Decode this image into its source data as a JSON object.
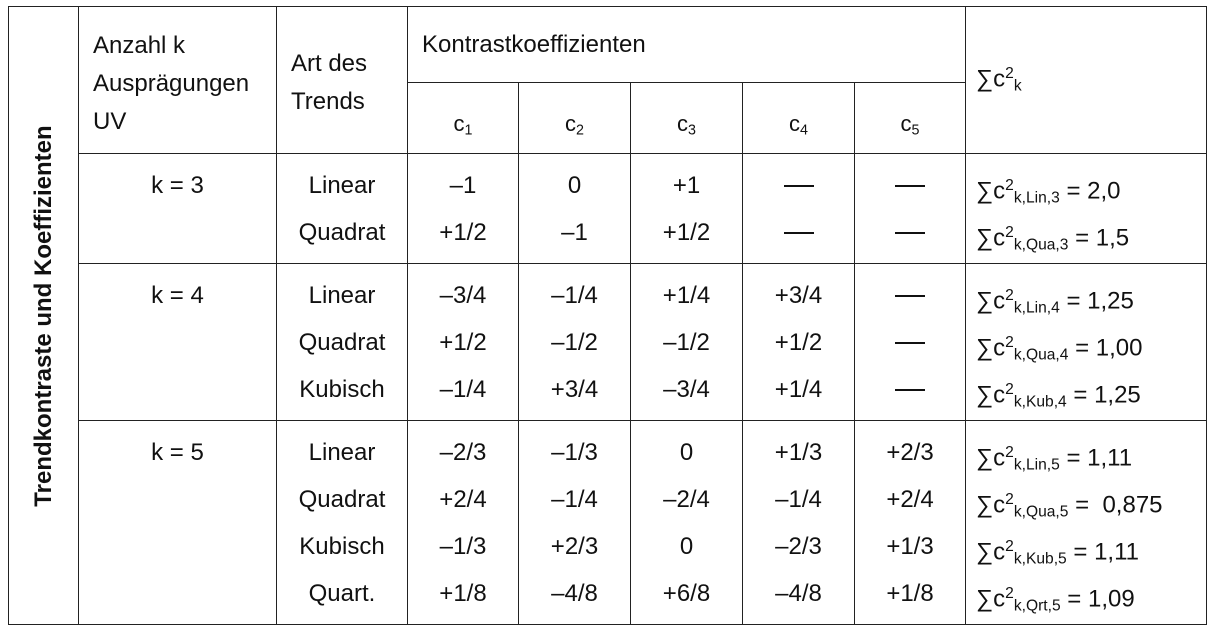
{
  "side_label": "Trendkontraste und Koeffizienten",
  "header": {
    "col_k": [
      "Anzahl k",
      "Ausprägungen",
      "UV"
    ],
    "col_trend": [
      "Art des",
      "Trends"
    ],
    "col_kontrast": "Kontrastkoeffizienten",
    "coef_letter": "c",
    "coef_indices": [
      "1",
      "2",
      "3",
      "4",
      "5"
    ],
    "sum_symbol": "∑c",
    "sum_sup": "2",
    "sum_sub": "k"
  },
  "groups": [
    {
      "k_label": "k = 3",
      "rows": [
        {
          "trend": "Linear",
          "c": [
            "–1",
            "0",
            "+1",
            "—",
            "—"
          ],
          "sum_sub": "k,Lin,3",
          "sum_value": " = 2,0"
        },
        {
          "trend": "Quadrat",
          "c": [
            "+1/2",
            "–1",
            "+1/2",
            "—",
            "—"
          ],
          "sum_sub": "k,Qua,3",
          "sum_value": " = 1,5"
        }
      ]
    },
    {
      "k_label": "k = 4",
      "rows": [
        {
          "trend": "Linear",
          "c": [
            "–3/4",
            "–1/4",
            "+1/4",
            "+3/4",
            "—"
          ],
          "sum_sub": "k,Lin,4",
          "sum_value": " = 1,25"
        },
        {
          "trend": "Quadrat",
          "c": [
            "+1/2",
            "–1/2",
            "–1/2",
            "+1/2",
            "—"
          ],
          "sum_sub": "k,Qua,4",
          "sum_value": " = 1,00"
        },
        {
          "trend": "Kubisch",
          "c": [
            "–1/4",
            "+3/4",
            "–3/4",
            "+1/4",
            "—"
          ],
          "sum_sub": "k,Kub,4",
          "sum_value": " = 1,25"
        }
      ]
    },
    {
      "k_label": "k = 5",
      "rows": [
        {
          "trend": "Linear",
          "c": [
            "–2/3",
            "–1/3",
            "0",
            "+1/3",
            "+2/3"
          ],
          "sum_sub": "k,Lin,5",
          "sum_value": " = 1,11"
        },
        {
          "trend": "Quadrat",
          "c": [
            "+2/4",
            "–1/4",
            "–2/4",
            "–1/4",
            "+2/4"
          ],
          "sum_sub": "k,Qua,5",
          "sum_value": " =  0,875"
        },
        {
          "trend": "Kubisch",
          "c": [
            "–1/3",
            "+2/3",
            "0",
            "–2/3",
            "+1/3"
          ],
          "sum_sub": "k,Kub,5",
          "sum_value": " = 1,11"
        },
        {
          "trend": "Quart.",
          "c": [
            "+1/8",
            "–4/8",
            "+6/8",
            "–4/8",
            "+1/8"
          ],
          "sum_sub": "k,Qrt,5",
          "sum_value": " = 1,09"
        }
      ]
    }
  ]
}
